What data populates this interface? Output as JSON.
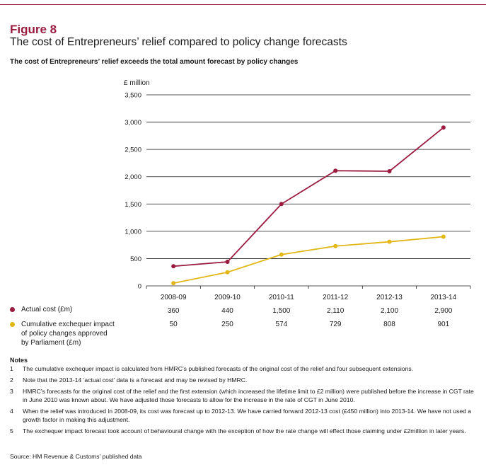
{
  "figure": {
    "label": "Figure 8",
    "title": "The cost of Entrepreneurs’ relief compared to policy change forecasts",
    "subtitle": "The cost of Entrepreneurs’ relief exceeds the total amount forecast by policy changes"
  },
  "chart_data": {
    "type": "line",
    "ylabel": "£ million",
    "ylim": [
      0,
      3500
    ],
    "ytick_values": [
      0,
      500,
      1000,
      1500,
      2000,
      2500,
      3000,
      3500
    ],
    "yticks": [
      "0",
      "500",
      "1,000",
      "1,500",
      "2,000",
      "2,500",
      "3,000",
      "3,500"
    ],
    "categories": [
      "2008-09",
      "2009-10",
      "2010-11",
      "2011-12",
      "2012-13",
      "2013-14"
    ],
    "grid": true,
    "series": [
      {
        "name": "Actual cost (£m)",
        "color": "#9b1b3f",
        "values": [
          360,
          440,
          1500,
          2110,
          2100,
          2900
        ],
        "labels": [
          "360",
          "440",
          "1,500",
          "2,110",
          "2,100",
          "2,900"
        ]
      },
      {
        "name": "Cumulative exchequer impact of policy changes approved by Parliament (£m)",
        "color": "#e2b714",
        "values": [
          50,
          250,
          574,
          729,
          808,
          901
        ],
        "labels": [
          "50",
          "250",
          "574",
          "729",
          "808",
          "901"
        ]
      }
    ]
  },
  "legend": {
    "actual": {
      "line1": "Actual cost (£m)"
    },
    "forecast": {
      "line1": "Cumulative exchequer impact",
      "line2": "of policy changes approved",
      "line3": "by Parliament (£m)"
    }
  },
  "notes": {
    "title": "Notes",
    "items": [
      {
        "num": "1",
        "text": "The cumulative exchequer impact is calculated from HMRC’s published forecasts of the original cost of the relief and four subsequent extensions."
      },
      {
        "num": "2",
        "text": "Note that the 2013-14 ‘actual cost’ data is a forecast and may be revised by HMRC."
      },
      {
        "num": "3",
        "text": "HMRC’s forecasts for the original cost of the relief and the first extension (which increased the lifetime limit to £2 million) were published before the increase in CGT rate in June 2010 was known about. We have adjusted those forecasts to allow for the increase in the rate of CGT in June 2010."
      },
      {
        "num": "4",
        "text": "When the relief was introduced in 2008-09, its cost was forecast up to 2012-13. We have carried forward 2012-13 cost (£450 million) into 2013-14. We have not used a growth factor in making this adjustment."
      },
      {
        "num": "5",
        "text": "The exchequer impact forecast took account of behavioural change with the exception of how the rate change will effect those claiming under £2million in later years."
      }
    ]
  },
  "source": "Source: HM Revenue & Customs’ published data"
}
